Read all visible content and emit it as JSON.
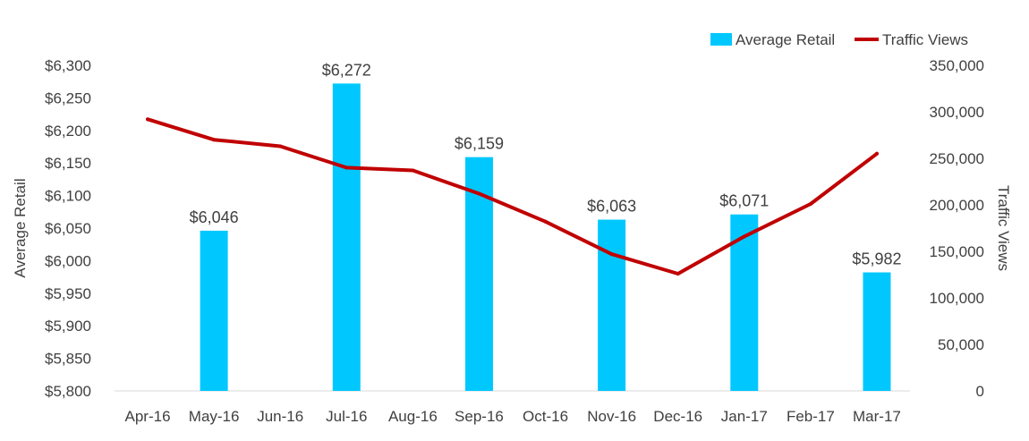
{
  "chart_data": {
    "type": "bar",
    "title": "",
    "categories": [
      "Apr-16",
      "May-16",
      "Jun-16",
      "Jul-16",
      "Aug-16",
      "Sep-16",
      "Oct-16",
      "Nov-16",
      "Dec-16",
      "Jan-17",
      "Feb-17",
      "Mar-17"
    ],
    "series": [
      {
        "name": "Average Retail",
        "type": "bar",
        "axis": "left",
        "color": "#00C8FF",
        "values": [
          null,
          6046,
          null,
          6272,
          null,
          6159,
          null,
          6063,
          null,
          6071,
          null,
          5982
        ],
        "labels": [
          "",
          "$6,046",
          "",
          "$6,272",
          "",
          "$6,159",
          "",
          "$6,063",
          "",
          "$6,071",
          "",
          "$5,982"
        ]
      },
      {
        "name": "Traffic Views",
        "type": "line",
        "axis": "right",
        "color": "#C00000",
        "values": [
          292000,
          270000,
          263000,
          240000,
          237000,
          212000,
          182000,
          147000,
          126000,
          166000,
          201000,
          255000
        ]
      }
    ],
    "yleft": {
      "label": "Average Retail",
      "min": 5800,
      "max": 6300,
      "ticks": [
        "$6,300",
        "$6,250",
        "$6,200",
        "$6,150",
        "$6,100",
        "$6,050",
        "$6,000",
        "$5,950",
        "$5,900",
        "$5,850",
        "$5,800"
      ]
    },
    "yright": {
      "label": "Traffic Views",
      "min": 0,
      "max": 350000,
      "ticks": [
        "350,000",
        "300,000",
        "250,000",
        "200,000",
        "150,000",
        "100,000",
        "50,000",
        "0"
      ]
    },
    "legend": {
      "position": "top-right"
    },
    "grid": false
  }
}
